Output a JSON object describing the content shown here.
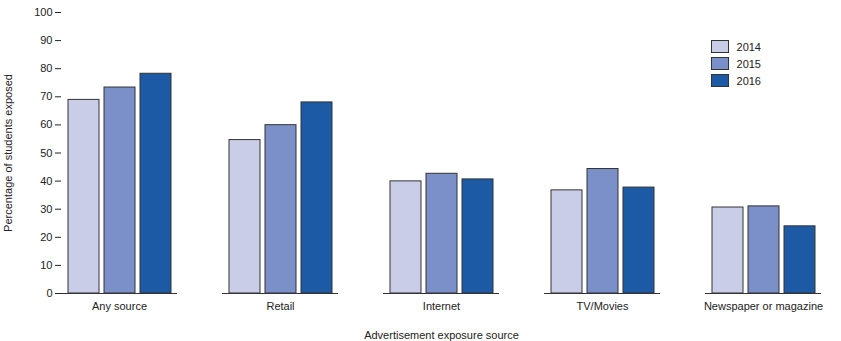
{
  "chart_data": {
    "type": "bar",
    "x_label": "Advertisement exposure source",
    "y_label": "Percentage of students exposed",
    "categories": [
      "Any source",
      "Retail",
      "Internet",
      "TV/Movies",
      "Newspaper or magazine"
    ],
    "series": [
      {
        "name": "2014",
        "color": "#c9cde8",
        "values": [
          68.9,
          54.6,
          39.9,
          36.7,
          30.6
        ]
      },
      {
        "name": "2015",
        "color": "#7b8fc8",
        "values": [
          73.3,
          59.9,
          42.6,
          44.3,
          31.0
        ]
      },
      {
        "name": "2016",
        "color": "#1d5aa5",
        "values": [
          78.2,
          68.0,
          40.6,
          37.7,
          23.9
        ]
      }
    ],
    "ylim": [
      0,
      100
    ],
    "yticks": [
      0,
      10,
      20,
      30,
      40,
      50,
      60,
      70,
      80,
      90,
      100
    ],
    "legend": "top-right",
    "grid": false
  }
}
